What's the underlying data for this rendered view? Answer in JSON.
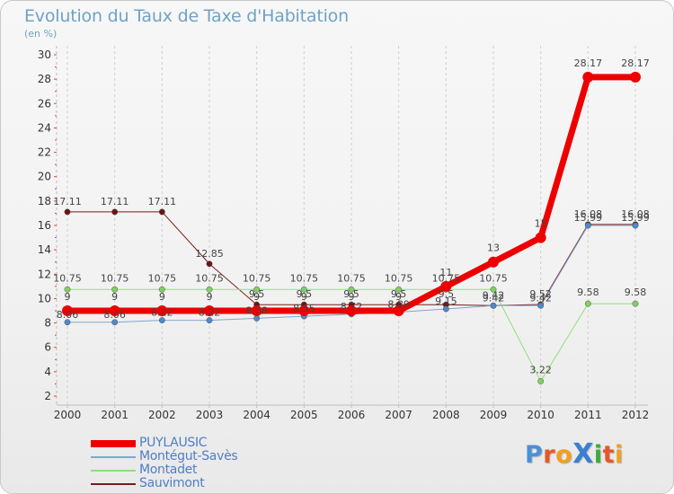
{
  "title": "Evolution du Taux de Taxe d'Habitation",
  "unit": "(en %)",
  "logo": {
    "text": "ProXiti",
    "letters": [
      {
        "ch": "P",
        "color": "#4a90d9"
      },
      {
        "ch": "r",
        "color": "#e8562a"
      },
      {
        "ch": "o",
        "color": "#f0a01e"
      },
      {
        "ch": "X",
        "color": "#3b7fd0"
      },
      {
        "ch": "i",
        "color": "#3faa3c"
      },
      {
        "ch": "t",
        "color": "#e8562a"
      },
      {
        "ch": "i",
        "color": "#f0a01e"
      }
    ]
  },
  "chart_data": {
    "type": "line",
    "title": "Evolution du Taux de Taxe d'Habitation",
    "ylabel": "(en %)",
    "xlabel": "",
    "x": [
      "2000",
      "2001",
      "2002",
      "2003",
      "2004",
      "2005",
      "2006",
      "2007",
      "2008",
      "2009",
      "2010",
      "2011",
      "2012"
    ],
    "ylim": [
      2,
      30
    ],
    "yticks": [
      2,
      4,
      6,
      8,
      10,
      12,
      14,
      16,
      18,
      20,
      22,
      24,
      26,
      28,
      30
    ],
    "grid": "vertical dashed",
    "legend_position": "bottom-left",
    "series": [
      {
        "name": "Sauvimont",
        "color": "#7a1c1c",
        "values": [
          17.11,
          17.11,
          17.11,
          12.85,
          9.5,
          9.5,
          9.5,
          9.5,
          9.5,
          9.42,
          9.52,
          16.08,
          16.08
        ],
        "labels": [
          "17.11",
          "17.11",
          "17.11",
          "12.85",
          "9.5",
          "9.5",
          "9.5",
          "9.5",
          "9.5",
          "9.42",
          "9.52",
          "16.08",
          "16.08"
        ]
      },
      {
        "name": "Montadet",
        "color": "#8fe07a",
        "values": [
          10.75,
          10.75,
          10.75,
          10.75,
          10.75,
          10.75,
          10.75,
          10.75,
          10.75,
          10.75,
          3.22,
          9.58,
          9.58
        ],
        "labels": [
          "10.75",
          "10.75",
          "10.75",
          "10.75",
          "10.75",
          "10.75",
          "10.75",
          "10.75",
          "10.75",
          "10.75",
          "3.22",
          "9.58",
          "9.58"
        ]
      },
      {
        "name": "Montégut-Savès",
        "color": "#7fa7cf",
        "values": [
          8.06,
          8.06,
          8.22,
          8.22,
          8.38,
          8.55,
          8.72,
          8.89,
          9.15,
          9.42,
          9.42,
          15.99,
          15.99
        ],
        "labels": [
          "8.06",
          "8.06",
          "8.22",
          "8.22",
          "8.38",
          "8.55",
          "8.72",
          "8.89",
          "9.15",
          "9.42",
          "9.42",
          "15.99",
          "15.99"
        ]
      },
      {
        "name": "PUYLAUSIC",
        "color": "#ee0000",
        "values": [
          9,
          9,
          9,
          9,
          9,
          9,
          9,
          9,
          11,
          13,
          15,
          28.17,
          28.17
        ],
        "labels": [
          "9",
          "9",
          "9",
          "9",
          "9",
          "9",
          "9",
          "9",
          "11",
          "13",
          "15",
          "28.17",
          "28.17"
        ]
      }
    ],
    "legend_order": [
      "PUYLAUSIC",
      "Montégut-Savès",
      "Montadet",
      "Sauvimont"
    ]
  }
}
